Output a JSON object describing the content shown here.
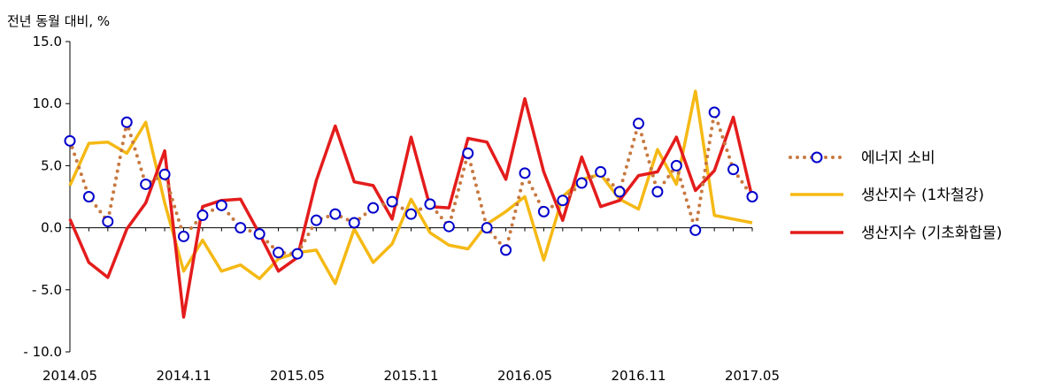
{
  "chart_data": {
    "type": "line",
    "unit_label": "전년 동월 대비, %",
    "ylim": [
      -10,
      15
    ],
    "y_ticks": [
      15,
      10,
      5,
      0,
      -5,
      -10
    ],
    "y_tick_labels": [
      "15.0",
      "10.0",
      "5.0",
      "0.0",
      "- 5.0",
      "- 10.0"
    ],
    "x": [
      "2014.05",
      "2014.06",
      "2014.07",
      "2014.08",
      "2014.09",
      "2014.10",
      "2014.11",
      "2014.12",
      "2015.01",
      "2015.02",
      "2015.03",
      "2015.04",
      "2015.05",
      "2015.06",
      "2015.07",
      "2015.08",
      "2015.09",
      "2015.10",
      "2015.11",
      "2015.12",
      "2016.01",
      "2016.02",
      "2016.03",
      "2016.04",
      "2016.05",
      "2016.06",
      "2016.07",
      "2016.08",
      "2016.09",
      "2016.10",
      "2016.11",
      "2016.12",
      "2017.01",
      "2017.02",
      "2017.03",
      "2017.04",
      "2017.05"
    ],
    "x_tick_labels": [
      "2014.05",
      "2014.11",
      "2015.05",
      "2015.11",
      "2016.05",
      "2016.11",
      "2017.05"
    ],
    "grid": false,
    "legend_position": "right",
    "series": [
      {
        "name": "에너지 소비",
        "color": "#c87941",
        "marker_color": "#0000cc",
        "style": "dotted-with-circles",
        "values": [
          7.0,
          2.5,
          0.5,
          8.5,
          3.5,
          4.3,
          -0.7,
          1.0,
          1.8,
          0.0,
          -0.5,
          -2.0,
          -2.1,
          0.6,
          1.1,
          0.4,
          1.6,
          2.1,
          1.1,
          1.9,
          0.1,
          6.0,
          0.0,
          -1.8,
          4.4,
          1.3,
          2.2,
          3.6,
          4.5,
          2.9,
          8.4,
          2.9,
          5.0,
          -0.2,
          9.3,
          4.7,
          2.5
        ]
      },
      {
        "name": "생산지수 (1차철강)",
        "color": "#f5b915",
        "style": "solid",
        "values": [
          3.4,
          6.8,
          6.9,
          6.0,
          8.5,
          2.0,
          -3.5,
          -1.0,
          -3.5,
          -3.0,
          -4.1,
          -2.5,
          -2.0,
          -1.8,
          -4.5,
          -0.1,
          -2.8,
          -1.3,
          2.3,
          -0.4,
          -1.4,
          -1.7,
          0.3,
          1.3,
          2.5,
          -2.6,
          2.5,
          3.9,
          4.3,
          2.3,
          1.5,
          6.3,
          3.5,
          11.0,
          1.0,
          0.7,
          0.4
        ]
      },
      {
        "name": "생산지수 (기초화합물)",
        "color": "#e41c1c",
        "style": "solid",
        "values": [
          0.7,
          -2.8,
          -4.0,
          -0.1,
          2.0,
          6.2,
          -7.2,
          1.7,
          2.2,
          2.3,
          -0.5,
          -3.5,
          -2.4,
          3.8,
          8.2,
          3.7,
          3.4,
          0.7,
          7.3,
          1.7,
          1.6,
          7.2,
          6.9,
          3.9,
          10.4,
          4.5,
          0.6,
          5.7,
          1.7,
          2.2,
          4.2,
          4.5,
          7.3,
          3.0,
          4.6,
          8.9,
          2.4
        ]
      }
    ]
  }
}
